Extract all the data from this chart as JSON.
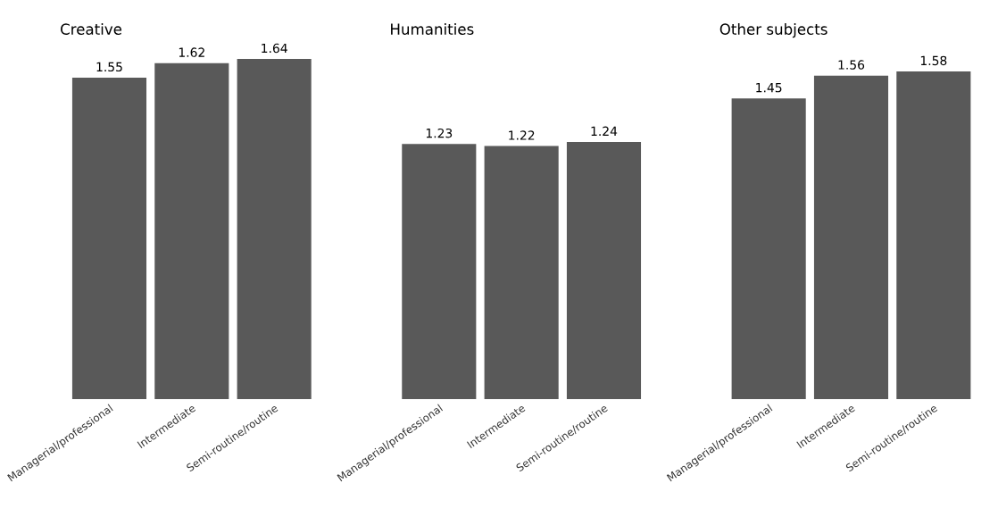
{
  "chart_data": [
    {
      "type": "bar",
      "title": "Creative",
      "categories": [
        "Managerial/professional",
        "Intermediate",
        "Semi-routine/routine"
      ],
      "values": [
        1.55,
        1.62,
        1.64
      ],
      "color": "#595959",
      "data_labels": true,
      "tick_labels": "x"
    },
    {
      "type": "bar",
      "title": "Humanities",
      "categories": [
        "Managerial/professional",
        "Intermediate",
        "Semi-routine/routine"
      ],
      "values": [
        1.23,
        1.22,
        1.24
      ],
      "color": "#595959",
      "data_labels": true,
      "tick_labels": "x"
    },
    {
      "type": "bar",
      "title": "Other subjects",
      "categories": [
        "Managerial/professional",
        "Intermediate",
        "Semi-routine/routine"
      ],
      "values": [
        1.45,
        1.56,
        1.58
      ],
      "color": "#595959",
      "data_labels": true,
      "tick_labels": "x"
    }
  ]
}
